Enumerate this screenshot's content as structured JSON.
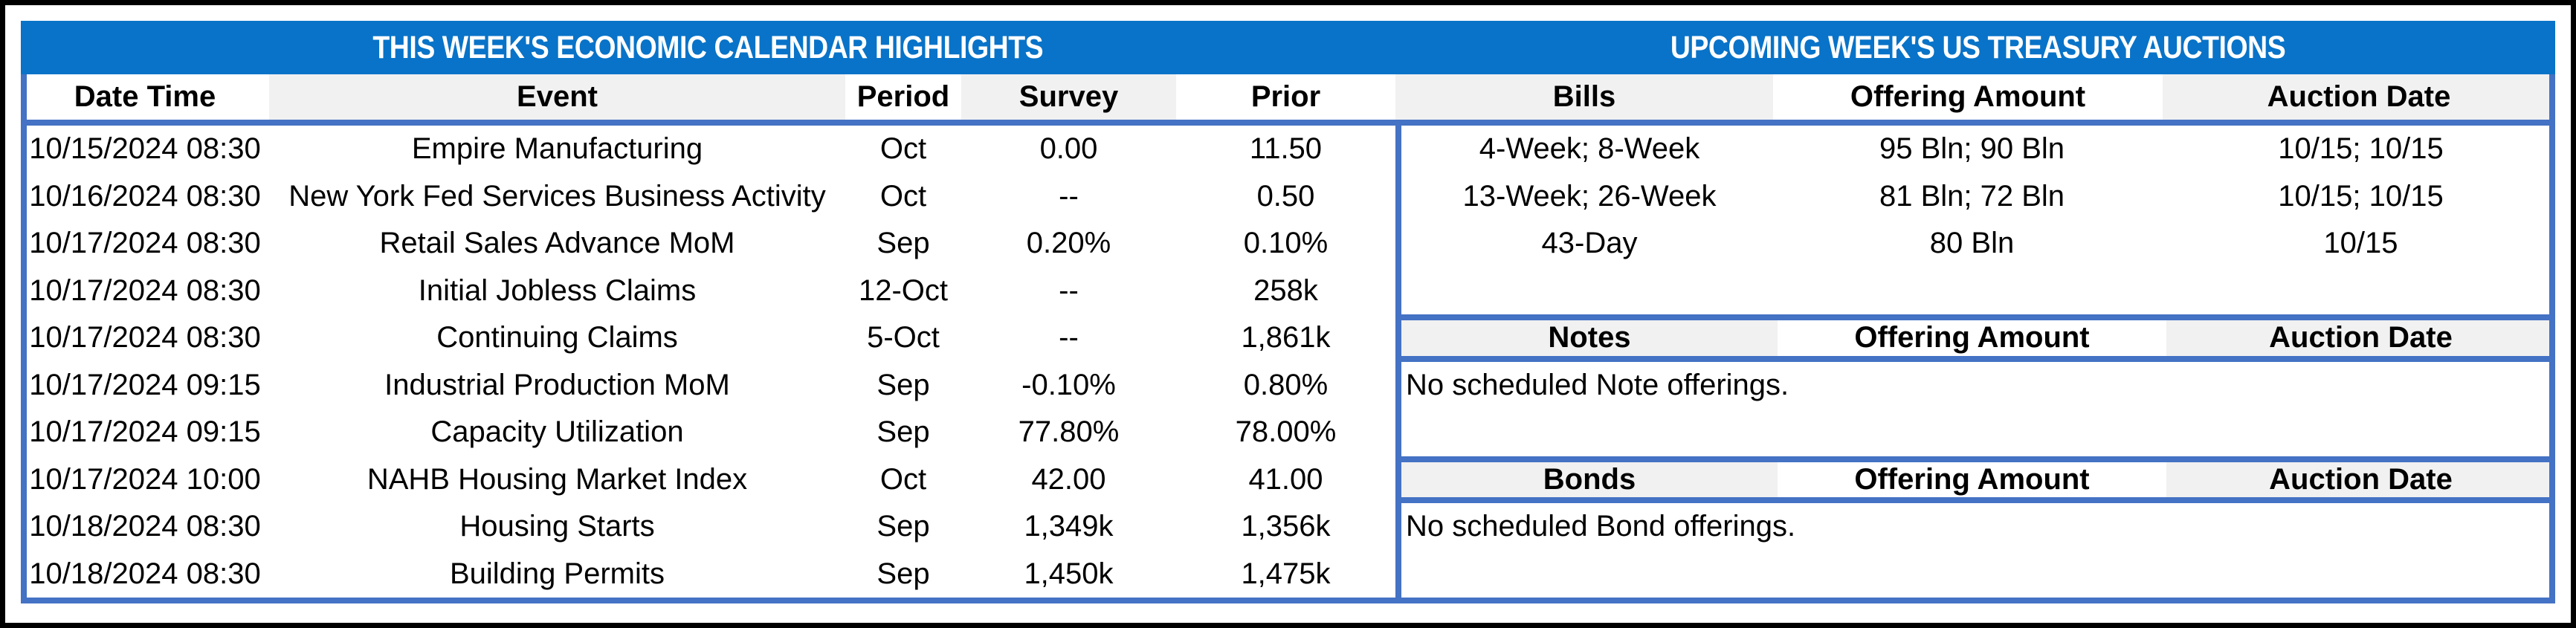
{
  "colors": {
    "title_bar_blue": "#0873C8",
    "border_blue": "#4472C4",
    "column_shade_gray": "#F1F1F1",
    "outer_frame_black": "#000000"
  },
  "titles": {
    "left": "THIS WEEK'S ECONOMIC CALENDAR HIGHLIGHTS",
    "right": "UPCOMING WEEK'S US TREASURY AUCTIONS"
  },
  "calendar": {
    "headers": {
      "date": "Date Time",
      "event": "Event",
      "period": "Period",
      "survey": "Survey",
      "prior": "Prior"
    },
    "rows": [
      {
        "date": "10/15/2024 08:30",
        "event": "Empire Manufacturing",
        "period": "Oct",
        "survey": "0.00",
        "prior": "11.50"
      },
      {
        "date": "10/16/2024 08:30",
        "event": "New York Fed Services Business Activity",
        "period": "Oct",
        "survey": "--",
        "prior": "0.50"
      },
      {
        "date": "10/17/2024 08:30",
        "event": "Retail Sales Advance MoM",
        "period": "Sep",
        "survey": "0.20%",
        "prior": "0.10%"
      },
      {
        "date": "10/17/2024 08:30",
        "event": "Initial Jobless Claims",
        "period": "12-Oct",
        "survey": "--",
        "prior": "258k"
      },
      {
        "date": "10/17/2024 08:30",
        "event": "Continuing Claims",
        "period": "5-Oct",
        "survey": "--",
        "prior": "1,861k"
      },
      {
        "date": "10/17/2024 09:15",
        "event": "Industrial Production MoM",
        "period": "Sep",
        "survey": "-0.10%",
        "prior": "0.80%"
      },
      {
        "date": "10/17/2024 09:15",
        "event": "Capacity Utilization",
        "period": "Sep",
        "survey": "77.80%",
        "prior": "78.00%"
      },
      {
        "date": "10/17/2024 10:00",
        "event": "NAHB Housing Market Index",
        "period": "Oct",
        "survey": "42.00",
        "prior": "41.00"
      },
      {
        "date": "10/18/2024 08:30",
        "event": "Housing Starts",
        "period": "Sep",
        "survey": "1,349k",
        "prior": "1,356k"
      },
      {
        "date": "10/18/2024 08:30",
        "event": "Building Permits",
        "period": "Sep",
        "survey": "1,450k",
        "prior": "1,475k"
      }
    ]
  },
  "auctions": {
    "bills": {
      "header": {
        "type": "Bills",
        "amount": "Offering Amount",
        "date": "Auction Date"
      },
      "rows": [
        {
          "type": "4-Week; 8-Week",
          "amount": "95 Bln; 90 Bln",
          "date": "10/15; 10/15"
        },
        {
          "type": "13-Week; 26-Week",
          "amount": "81 Bln; 72 Bln",
          "date": "10/15; 10/15"
        },
        {
          "type": "43-Day",
          "amount": "80 Bln",
          "date": "10/15"
        }
      ]
    },
    "notes": {
      "header": {
        "type": "Notes",
        "amount": "Offering Amount",
        "date": "Auction Date"
      },
      "message": "No scheduled Note offerings."
    },
    "bonds": {
      "header": {
        "type": "Bonds",
        "amount": "Offering Amount",
        "date": "Auction Date"
      },
      "message": "No scheduled Bond offerings."
    }
  }
}
